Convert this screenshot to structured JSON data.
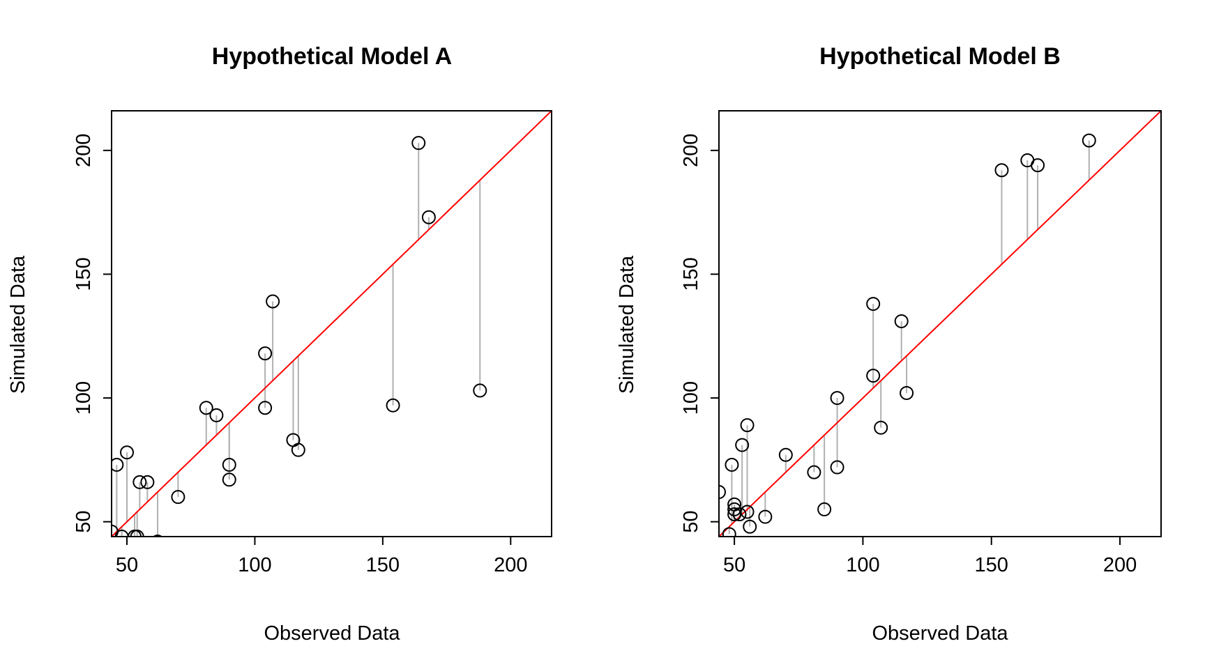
{
  "chart_data": [
    {
      "type": "scatter",
      "title": "Hypothetical Model A",
      "xlabel": "Observed Data",
      "ylabel": "Simulated Data",
      "xlim": [
        44,
        216
      ],
      "ylim": [
        44,
        216
      ],
      "xticks": [
        "50",
        "100",
        "150",
        "200"
      ],
      "yticks": [
        "50",
        "100",
        "150",
        "200"
      ],
      "reference_line": {
        "type": "y=x",
        "color": "#ff0000"
      },
      "residual_line_color": "#b0b0b0",
      "point_style": "open-circle",
      "points": [
        {
          "x": 44,
          "y": 46
        },
        {
          "x": 46,
          "y": 73
        },
        {
          "x": 48,
          "y": 44
        },
        {
          "x": 50,
          "y": 78
        },
        {
          "x": 53,
          "y": 44
        },
        {
          "x": 54,
          "y": 44
        },
        {
          "x": 55,
          "y": 66
        },
        {
          "x": 58,
          "y": 66
        },
        {
          "x": 62,
          "y": 42
        },
        {
          "x": 70,
          "y": 60
        },
        {
          "x": 81,
          "y": 96
        },
        {
          "x": 85,
          "y": 93
        },
        {
          "x": 90,
          "y": 73
        },
        {
          "x": 90,
          "y": 67
        },
        {
          "x": 104,
          "y": 118
        },
        {
          "x": 104,
          "y": 96
        },
        {
          "x": 107,
          "y": 139
        },
        {
          "x": 115,
          "y": 83
        },
        {
          "x": 117,
          "y": 79
        },
        {
          "x": 154,
          "y": 97
        },
        {
          "x": 164,
          "y": 203
        },
        {
          "x": 168,
          "y": 173
        },
        {
          "x": 188,
          "y": 103
        }
      ]
    },
    {
      "type": "scatter",
      "title": "Hypothetical Model B",
      "xlabel": "Observed Data",
      "ylabel": "Simulated Data",
      "xlim": [
        44,
        216
      ],
      "ylim": [
        44,
        216
      ],
      "xticks": [
        "50",
        "100",
        "150",
        "200"
      ],
      "yticks": [
        "50",
        "100",
        "150",
        "200"
      ],
      "reference_line": {
        "type": "y=x",
        "color": "#ff0000"
      },
      "residual_line_color": "#b0b0b0",
      "point_style": "open-circle",
      "points": [
        {
          "x": 44,
          "y": 62
        },
        {
          "x": 48,
          "y": 45
        },
        {
          "x": 49,
          "y": 73
        },
        {
          "x": 50,
          "y": 57
        },
        {
          "x": 50,
          "y": 55
        },
        {
          "x": 50,
          "y": 53
        },
        {
          "x": 52,
          "y": 53
        },
        {
          "x": 53,
          "y": 81
        },
        {
          "x": 55,
          "y": 89
        },
        {
          "x": 55,
          "y": 54
        },
        {
          "x": 56,
          "y": 48
        },
        {
          "x": 62,
          "y": 52
        },
        {
          "x": 70,
          "y": 77
        },
        {
          "x": 81,
          "y": 70
        },
        {
          "x": 85,
          "y": 55
        },
        {
          "x": 90,
          "y": 100
        },
        {
          "x": 90,
          "y": 72
        },
        {
          "x": 104,
          "y": 138
        },
        {
          "x": 104,
          "y": 109
        },
        {
          "x": 107,
          "y": 88
        },
        {
          "x": 115,
          "y": 131
        },
        {
          "x": 117,
          "y": 102
        },
        {
          "x": 154,
          "y": 192
        },
        {
          "x": 164,
          "y": 196
        },
        {
          "x": 168,
          "y": 194
        },
        {
          "x": 188,
          "y": 204
        }
      ]
    }
  ]
}
